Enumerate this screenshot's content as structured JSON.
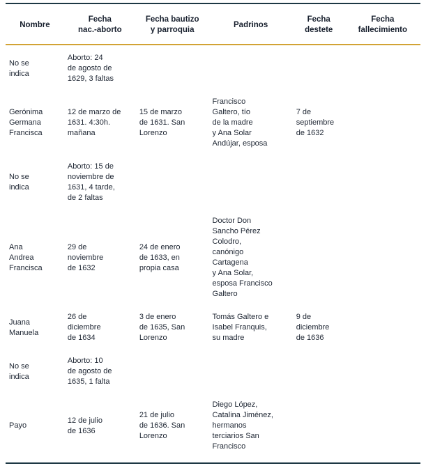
{
  "colors": {
    "rule_dark": "#1d3844",
    "rule_gold": "#d2a335",
    "text": "#1d2532",
    "background": "#ffffff"
  },
  "table": {
    "columns": [
      "Nombre",
      "Fecha\nnac.-aborto",
      "Fecha bautizo\ny parroquia",
      "Padrinos",
      "Fecha\ndestete",
      "Fecha\nfallecimiento"
    ],
    "rows": [
      {
        "cells": [
          "No se\nindica",
          "Aborto: 24\nde agosto de\n1629, 3 faltas",
          "",
          "",
          "",
          ""
        ]
      },
      {
        "cells": [
          "Gerónima\nGermana\nFrancisca",
          "12 de marzo de\n1631. 4:30h.\nmañana",
          "15 de marzo\nde 1631. San\nLorenzo",
          "Francisco\nGaltero, tío\nde la madre\ny Ana Solar\nAndújar, esposa",
          "7 de\nseptiembre\nde 1632",
          ""
        ]
      },
      {
        "cells": [
          "No se\nindica",
          "Aborto: 15 de\nnoviembre de\n1631, 4 tarde,\nde 2 faltas",
          "",
          "",
          "",
          ""
        ]
      },
      {
        "cells": [
          "Ana\nAndrea\nFrancisca",
          "29 de\nnoviembre\nde 1632",
          "24 de enero\nde 1633, en\npropia casa",
          "Doctor Don\nSancho Pérez\nColodro,\ncanónigo\nCartagena\ny Ana Solar,\nesposa Francisco\nGaltero",
          "",
          ""
        ]
      },
      {
        "cells": [
          "Juana\nManuela",
          "26 de\ndiciembre\nde 1634",
          "3 de enero\nde 1635, San\nLorenzo",
          "Tomás Galtero e\nIsabel Franquis,\nsu madre",
          "9 de\ndiciembre\nde 1636",
          ""
        ]
      },
      {
        "cells": [
          "No se\nindica",
          "Aborto: 10\nde agosto de\n1635, 1 falta",
          "",
          "",
          "",
          ""
        ]
      },
      {
        "cells": [
          "Payo",
          "12 de julio\nde 1636",
          "21 de julio\nde 1636. San\nLorenzo",
          "Diego López,\nCatalina Jiménez,\nhermanos\nterciarios San\nFrancisco",
          "",
          ""
        ]
      }
    ]
  }
}
